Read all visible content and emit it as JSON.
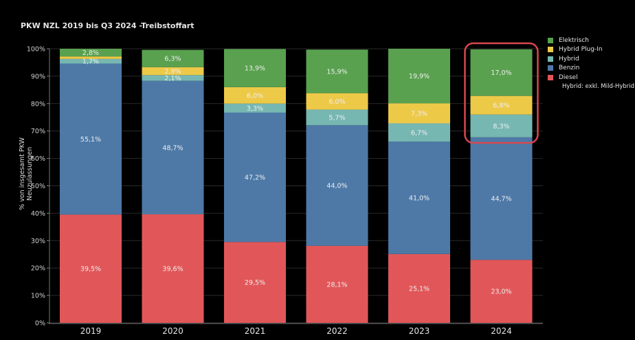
{
  "chart_data": {
    "type": "bar",
    "stacked": true,
    "title": "PKW NZL 2019 bis Q3 2024 -Treibstoffart",
    "xlabel": "",
    "ylabel": "% von insgesamt PKW Neuzulassungen",
    "ylim": [
      0,
      100
    ],
    "yticks": [
      "0%",
      "10%",
      "20%",
      "30%",
      "40%",
      "50%",
      "60%",
      "70%",
      "80%",
      "90%",
      "100%"
    ],
    "categories": [
      "2019",
      "2020",
      "2021",
      "2022",
      "2023",
      "2024"
    ],
    "series": [
      {
        "name": "Diesel",
        "color": "#e15759",
        "values": [
          39.5,
          39.6,
          29.5,
          28.1,
          25.1,
          23.0
        ],
        "labels": [
          "39,5%",
          "39,6%",
          "29,5%",
          "28,1%",
          "25,1%",
          "23,0%"
        ]
      },
      {
        "name": "Benzin",
        "color": "#4e79a7",
        "values": [
          55.1,
          48.7,
          47.2,
          44.0,
          41.0,
          44.7
        ],
        "labels": [
          "55,1%",
          "48,7%",
          "47,2%",
          "44,0%",
          "41,0%",
          "44,7%"
        ]
      },
      {
        "name": "Hybrid",
        "color": "#76b7b2",
        "values": [
          1.7,
          2.1,
          3.3,
          5.7,
          6.7,
          8.3
        ],
        "labels": [
          "1,7%",
          "2,1%",
          "3,3%",
          "5,7%",
          "6,7%",
          "8,3%"
        ]
      },
      {
        "name": "Hybrid Plug-In",
        "color": "#edc948",
        "values": [
          0.9,
          2.9,
          6.0,
          6.0,
          7.3,
          6.8
        ],
        "labels": [
          "",
          "2,9%",
          "6,0%",
          "6,0%",
          "7,3%",
          "6,8%"
        ]
      },
      {
        "name": "Elektrisch",
        "color": "#59a14f",
        "values": [
          2.8,
          6.3,
          13.9,
          15.9,
          19.9,
          17.0
        ],
        "labels": [
          "2,8%",
          "6,3%",
          "13,9%",
          "15,9%",
          "19,9%",
          "17,0%"
        ]
      }
    ],
    "legend_order": [
      "Elektrisch",
      "Hybrid Plug-In",
      "Hybrid",
      "Benzin",
      "Diesel"
    ],
    "legend_position": "right",
    "highlight_category": "2024",
    "highlight_color": "#d9474e",
    "note": "Hybrid:  exkl. Mild-Hybrid"
  }
}
